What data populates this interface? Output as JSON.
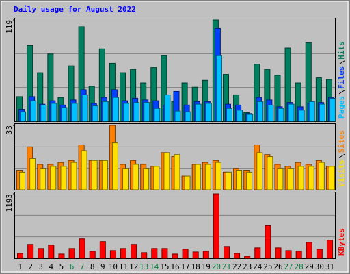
{
  "chart_data": {
    "type": "bar",
    "title": "Daily usage for August 2022",
    "categories": [
      "1",
      "2",
      "3",
      "4",
      "5",
      "6",
      "7",
      "8",
      "9",
      "10",
      "11",
      "12",
      "13",
      "14",
      "15",
      "16",
      "17",
      "18",
      "19",
      "20",
      "21",
      "22",
      "23",
      "24",
      "25",
      "26",
      "27",
      "28",
      "29",
      "30",
      "31"
    ],
    "highlight_categories": [
      "6",
      "7",
      "13",
      "14",
      "20",
      "21",
      "27",
      "28"
    ],
    "highlight_color": "#008040",
    "panels": [
      {
        "ylim": [
          0,
          119
        ],
        "yticks": [
          119
        ],
        "series": [
          {
            "name": "Hits",
            "color": "#008060",
            "values": [
              29,
              89,
              57,
              79,
              28,
              65,
              111,
              41,
              85,
              68,
              57,
              61,
              45,
              63,
              77,
              23,
              45,
              40,
              48,
              119,
              55,
              31,
              10,
              67,
              61,
              54,
              86,
              45,
              92,
              51,
              49
            ]
          },
          {
            "name": "Files",
            "color": "#0040ff",
            "values": [
              14,
              29,
              20,
              24,
              19,
              25,
              37,
              21,
              28,
              37,
              24,
              27,
              25,
              24,
              19,
              35,
              19,
              23,
              23,
              109,
              20,
              19,
              9,
              28,
              25,
              17,
              22,
              17,
              21,
              22,
              28
            ]
          },
          {
            "name": "Pages",
            "color": "#00c0ff",
            "values": [
              11,
              24,
              19,
              21,
              16,
              21,
              31,
              18,
              23,
              28,
              21,
              22,
              22,
              15,
              31,
              12,
              11,
              20,
              21,
              77,
              15,
              13,
              8,
              23,
              19,
              15,
              20,
              13,
              23,
              20,
              27
            ]
          }
        ]
      },
      {
        "ylim": [
          0,
          33
        ],
        "yticks": [
          33
        ],
        "series": [
          {
            "name": "Sites",
            "color": "#ff8000",
            "values": [
              10,
              22,
              13,
              13,
              14,
              15,
              23,
              15,
              15,
              33,
              13,
              15,
              13,
              12,
              19,
              17,
              7,
              13,
              14,
              15,
              9,
              11,
              10,
              23,
              18,
              13,
              12,
              14,
              13,
              15,
              12
            ]
          },
          {
            "name": "Visits",
            "color": "#ffe000",
            "values": [
              9,
              16,
              11,
              12,
              12,
              14,
              20,
              15,
              15,
              24,
              11,
              13,
              11,
              12,
              19,
              18,
              7,
              13,
              13,
              14,
              9,
              10,
              9,
              19,
              17,
              11,
              11,
              12,
              12,
              14,
              12
            ]
          }
        ]
      },
      {
        "ylim": [
          0,
          1193
        ],
        "yticks": [
          1193
        ],
        "series": [
          {
            "name": "KBytes",
            "color": "#ff0000",
            "values": [
              90,
              257,
              180,
              244,
              77,
              180,
              359,
              128,
              308,
              141,
              180,
              257,
              103,
              180,
              180,
              77,
              167,
              115,
              128,
              1193,
              218,
              90,
              38,
              192,
              603,
              192,
              141,
              128,
              295,
              167,
              334
            ]
          }
        ]
      }
    ]
  }
}
